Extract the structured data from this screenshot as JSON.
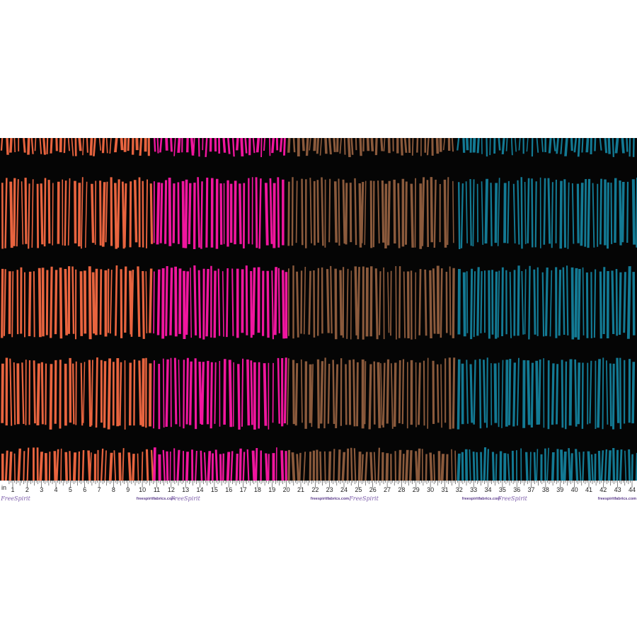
{
  "ruler": {
    "unit": "in",
    "numbers": [
      1,
      2,
      3,
      4,
      5,
      6,
      7,
      8,
      9,
      10,
      11,
      12,
      13,
      14,
      15,
      16,
      17,
      18,
      19,
      20,
      21,
      22,
      23,
      24,
      25,
      26,
      27,
      28,
      29,
      30,
      31,
      32,
      33,
      34,
      35,
      36,
      37,
      38,
      39,
      40,
      41,
      42,
      43,
      44
    ],
    "urls": [
      "freespiritfabrics.com",
      "freespiritfabrics.com",
      "freespiritfabrics.com",
      "freespiritfabrics.com"
    ],
    "logos": [
      "FreeSpirit",
      "FreeSpirit",
      "FreeSpirit",
      "FreeSpirit"
    ]
  }
}
